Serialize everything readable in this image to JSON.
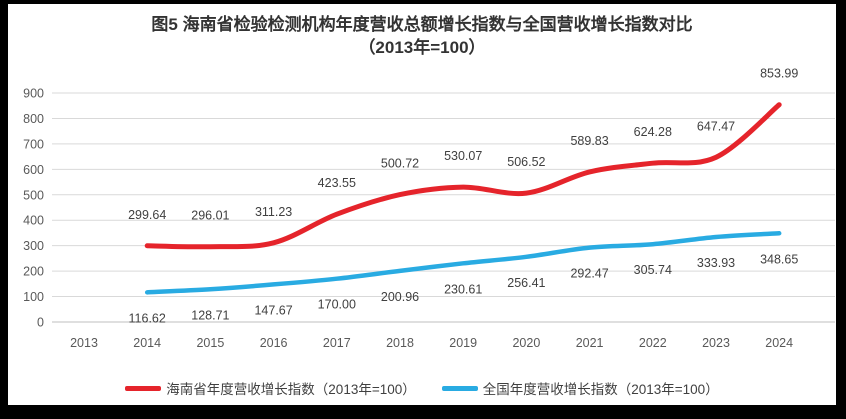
{
  "title": {
    "line1": "图5   海南省检验检测机构年度营收总额增长指数与全国营收增长指数对比",
    "line2": "（2013年=100）"
  },
  "chart_data": {
    "type": "line",
    "title": "图5 海南省检验检测机构年度营收总额增长指数与全国营收增长指数对比（2013年=100）",
    "categories": [
      2013,
      2014,
      2015,
      2016,
      2017,
      2018,
      2019,
      2020,
      2021,
      2022,
      2023,
      2024
    ],
    "series": [
      {
        "name": "海南省年度营收增长指数（2013年=100）",
        "color": "#e5242b",
        "stroke_width": 5,
        "label_position": "above",
        "x": [
          2014,
          2015,
          2016,
          2017,
          2018,
          2019,
          2020,
          2021,
          2022,
          2023,
          2024
        ],
        "values": [
          299.64,
          296.01,
          311.23,
          423.55,
          500.72,
          530.07,
          506.52,
          589.83,
          624.28,
          647.47,
          853.99
        ]
      },
      {
        "name": "全国年度营收增长指数（2013年=100）",
        "color": "#29abe2",
        "stroke_width": 4.5,
        "label_position": "below",
        "x": [
          2014,
          2015,
          2016,
          2017,
          2018,
          2019,
          2020,
          2021,
          2022,
          2023,
          2024
        ],
        "values": [
          116.62,
          128.71,
          147.67,
          170.0,
          200.96,
          230.61,
          256.41,
          292.47,
          305.74,
          333.93,
          348.65
        ]
      }
    ],
    "ylim": [
      0,
      900
    ],
    "ytick_step": 100,
    "yticks": [
      0,
      100,
      200,
      300,
      400,
      500,
      600,
      700,
      800,
      900
    ],
    "grid": true,
    "legend_position": "bottom",
    "smoothed_lines": true,
    "value_label_decimals": 2,
    "colors": {
      "gridline": "#d9d9d9",
      "zero_axis_line": "#bfbfbf",
      "tick_label": "#595959",
      "data_label": "#404040",
      "title": "#333333",
      "background": "#ffffff",
      "frame": "#000000"
    }
  }
}
